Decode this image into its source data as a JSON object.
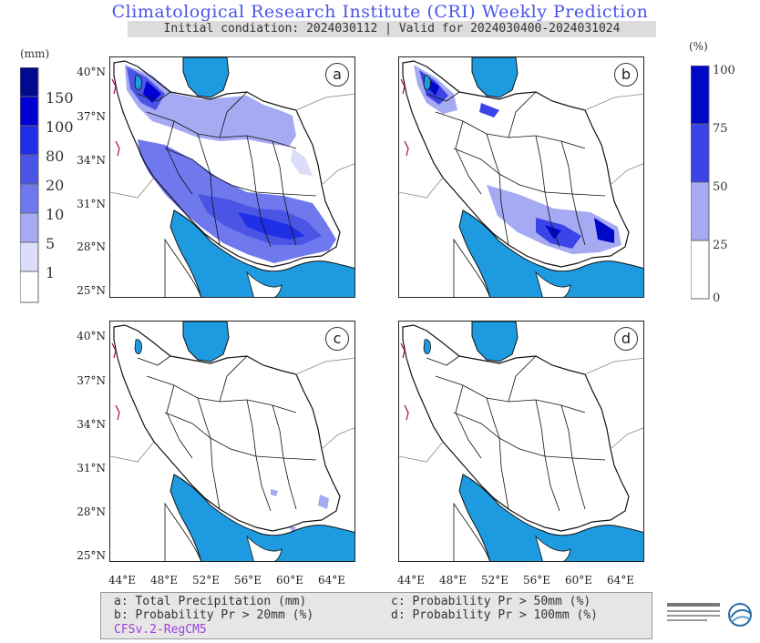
{
  "header": {
    "title": "Climatological Research Institute (CRI) Weekly Prediction",
    "subtitle": "Initial condiation: 2024030112 | Valid for 2024030400-2024031024"
  },
  "colorbar_left": {
    "unit": "(mm)",
    "labels": [
      "150",
      "100",
      "80",
      "20",
      "10",
      "5",
      "1"
    ],
    "colors": [
      "#000a8c",
      "#0000d2",
      "#1f2fe6",
      "#4a55e6",
      "#7078ee",
      "#a5aaf3",
      "#dcdef9",
      "#ffffff"
    ]
  },
  "colorbar_right": {
    "unit": "(%)",
    "labels": [
      "100",
      "75",
      "50",
      "25",
      "0"
    ],
    "colors": [
      "#0008c8",
      "#3a44e8",
      "#a5aaf3",
      "#ffffff"
    ]
  },
  "panels": [
    {
      "id": "a",
      "label": "a"
    },
    {
      "id": "b",
      "label": "b"
    },
    {
      "id": "c",
      "label": "c"
    },
    {
      "id": "d",
      "label": "d"
    }
  ],
  "axes": {
    "lat_ticks": [
      "40°N",
      "37°N",
      "34°N",
      "31°N",
      "28°N",
      "25°N"
    ],
    "lon_ticks": [
      "44°E",
      "48°E",
      "52°E",
      "56°E",
      "60°E",
      "64°E"
    ]
  },
  "legend": {
    "a": "a: Total Precipitation (mm)",
    "b": "b: Probability Pr > 20mm (%)",
    "c": "c: Probability Pr > 50mm (%)",
    "d": "d: Probability Pr > 100mm (%)",
    "model": "CFSv.2-RegCM5"
  },
  "colors": {
    "water": "#1e9be0",
    "border": "#111111",
    "title": "#4a55e6"
  }
}
